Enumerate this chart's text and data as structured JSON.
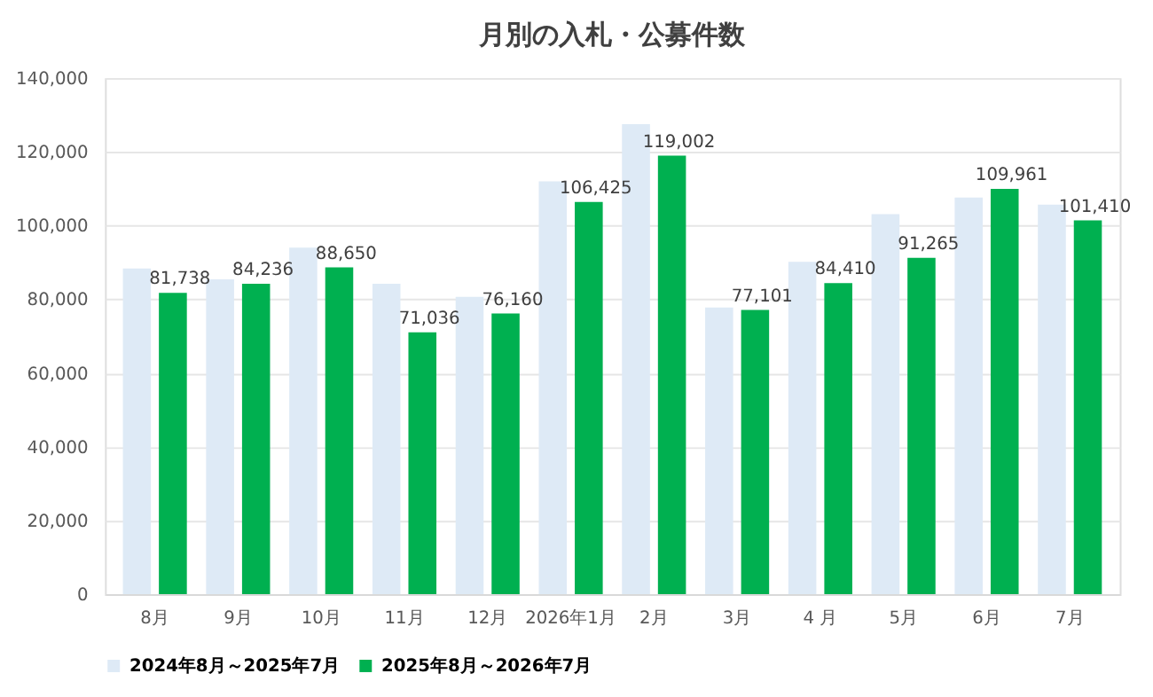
{
  "chart_data": {
    "type": "bar",
    "title": "月別の入札・公募件数",
    "categories": [
      "8月",
      "9月",
      "10月",
      "11月",
      "12月",
      "2026年1月",
      "2月",
      "3月",
      "4 月",
      "5月",
      "6月",
      "7月"
    ],
    "series": [
      {
        "name": "2024年8月～2025年7月",
        "color": "#deeaf6",
        "values": [
          88400,
          85400,
          94000,
          84200,
          80700,
          112000,
          127500,
          77800,
          90200,
          103100,
          107600,
          105700
        ]
      },
      {
        "name": "2025年8月～2026年7月",
        "color": "#00b050",
        "values": [
          81738,
          84236,
          88650,
          71036,
          76160,
          106425,
          119002,
          77101,
          84410,
          91265,
          109961,
          101410
        ],
        "value_labels": [
          "81,738",
          "84,236",
          "88,650",
          "71,036",
          "76,160",
          "106,425",
          "119,002",
          "77,101",
          "84,410",
          "91,265",
          "109,961",
          "101,410"
        ]
      }
    ],
    "ylim": [
      0,
      140000
    ],
    "yticks": [
      {
        "value": 0,
        "label": "0"
      },
      {
        "value": 20000,
        "label": "20,000"
      },
      {
        "value": 40000,
        "label": "40,000"
      },
      {
        "value": 60000,
        "label": "60,000"
      },
      {
        "value": 80000,
        "label": "80,000"
      },
      {
        "value": 100000,
        "label": "100,000"
      },
      {
        "value": 120000,
        "label": "120,000"
      },
      {
        "value": 140000,
        "label": "140,000"
      }
    ],
    "grid": "y",
    "legend": "bottom"
  }
}
